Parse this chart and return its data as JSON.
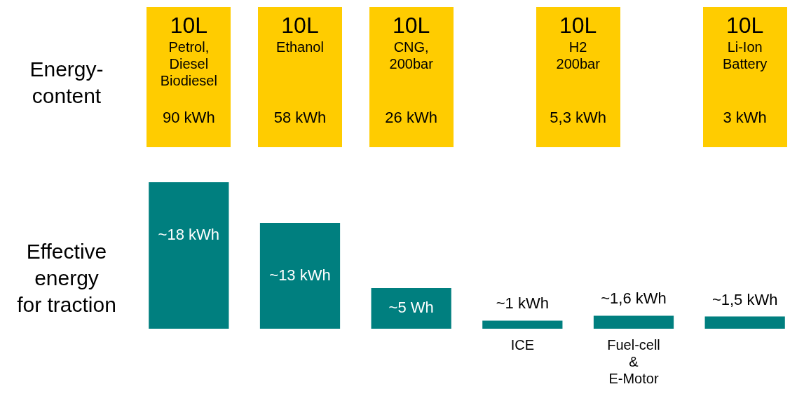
{
  "chart_data": [
    {
      "type": "other",
      "ylabel": "Energy-\ncontent",
      "color": "#ffcc00",
      "categories": [
        "Petrol,\nDiesel\nBiodiesel",
        "Ethanol",
        "CNG,\n200bar",
        "H2\n200bar",
        "Li-Ion\nBattery"
      ],
      "value_labels": [
        "90 kWh",
        "58 kWh",
        "26 kWh",
        "5,3 kWh",
        "3 kWh"
      ],
      "annotations": [
        "10L",
        "10L",
        "10L",
        "10L",
        "10L"
      ]
    },
    {
      "type": "bar",
      "ylabel": "Effective\nenergy\nfor traction",
      "color": "#007f7f",
      "tick_labels": "x",
      "categories": [
        null,
        null,
        null,
        "ICE",
        "Fuel-cell\n&\nE-Motor",
        null
      ],
      "values": [
        18,
        13,
        5,
        1,
        1.6,
        1.5
      ],
      "value_labels": [
        "~18 kWh",
        "~13 kWh",
        "~5 Wh",
        "~1 kWh",
        "~1,6 kWh",
        "~1,5 kWh"
      ]
    }
  ]
}
